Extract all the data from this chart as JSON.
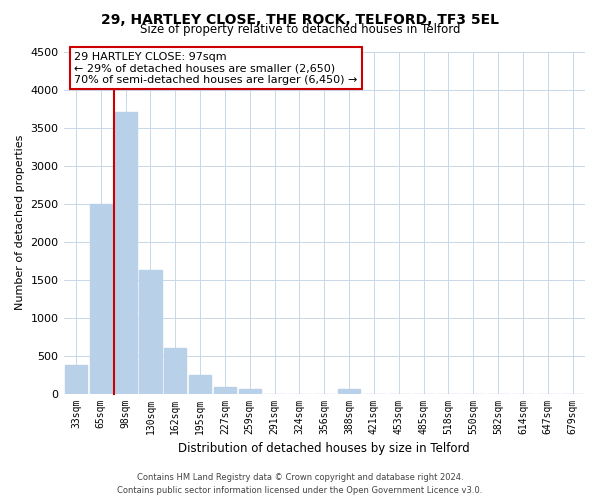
{
  "title1": "29, HARTLEY CLOSE, THE ROCK, TELFORD, TF3 5EL",
  "title2": "Size of property relative to detached houses in Telford",
  "xlabel": "Distribution of detached houses by size in Telford",
  "ylabel": "Number of detached properties",
  "categories": [
    "33sqm",
    "65sqm",
    "98sqm",
    "130sqm",
    "162sqm",
    "195sqm",
    "227sqm",
    "259sqm",
    "291sqm",
    "324sqm",
    "356sqm",
    "388sqm",
    "421sqm",
    "453sqm",
    "485sqm",
    "518sqm",
    "550sqm",
    "582sqm",
    "614sqm",
    "647sqm",
    "679sqm"
  ],
  "values": [
    380,
    2500,
    3700,
    1620,
    600,
    240,
    90,
    55,
    0,
    0,
    0,
    55,
    0,
    0,
    0,
    0,
    0,
    0,
    0,
    0,
    0
  ],
  "bar_color": "#b8d0e8",
  "vline_index": 2,
  "vline_color": "#cc0000",
  "ylim": [
    0,
    4500
  ],
  "yticks": [
    0,
    500,
    1000,
    1500,
    2000,
    2500,
    3000,
    3500,
    4000,
    4500
  ],
  "annotation_title": "29 HARTLEY CLOSE: 97sqm",
  "annotation_line1": "← 29% of detached houses are smaller (2,650)",
  "annotation_line2": "70% of semi-detached houses are larger (6,450) →",
  "annotation_box_color": "#ffffff",
  "annotation_box_edgecolor": "#cc0000",
  "footnote1": "Contains HM Land Registry data © Crown copyright and database right 2024.",
  "footnote2": "Contains public sector information licensed under the Open Government Licence v3.0.",
  "background_color": "#ffffff",
  "grid_color": "#c8d8e8"
}
